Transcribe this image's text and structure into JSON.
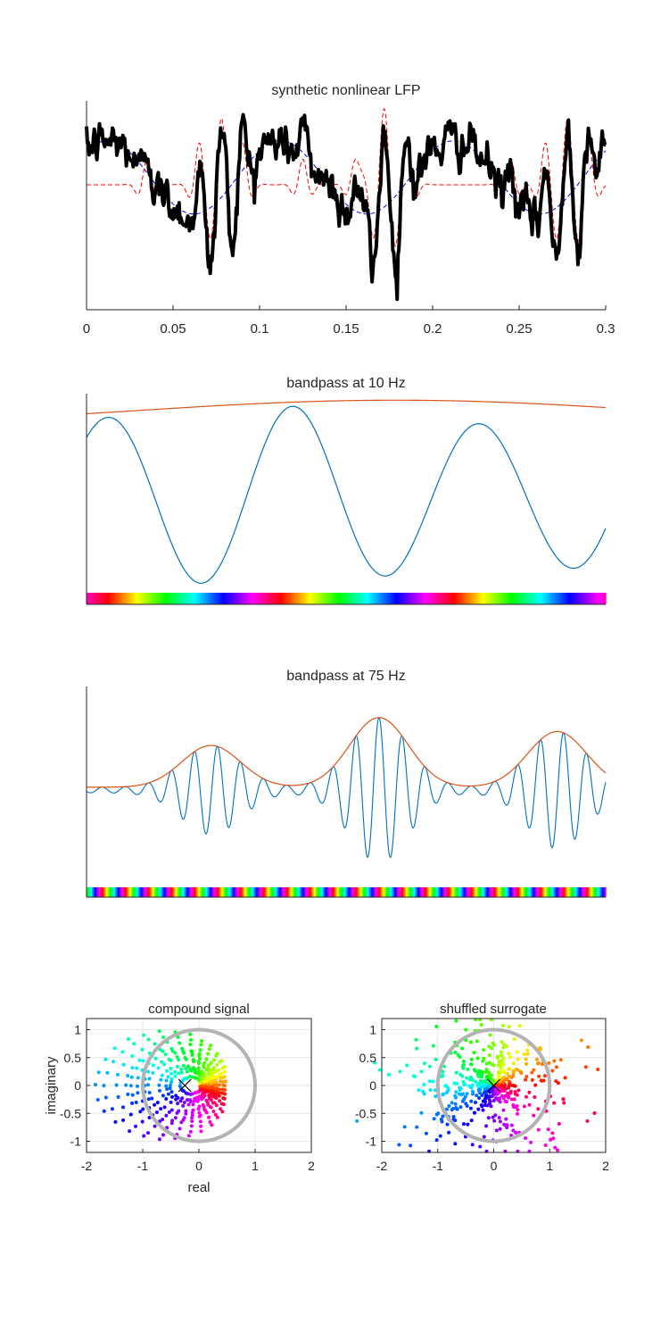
{
  "figure": {
    "panel_a": {
      "title": "synthetic nonlinear LFP"
    },
    "panel_b": {
      "title": "bandpass at 10 Hz"
    },
    "panel_c": {
      "title": "bandpass at 75 Hz"
    },
    "panel_d": {
      "title": "compound signal",
      "xlabel": "real",
      "ylabel": "imaginary"
    },
    "panel_e": {
      "title": "shuffled surrogate"
    }
  },
  "colors": {
    "lfp": "#000000",
    "lfp_low": "#0000ff",
    "lfp_high": "#ff0000",
    "bandpass": "#0072bd",
    "envelope": "#d95319",
    "unit_circle": "#b3b3b3",
    "mean_marker": "#000000",
    "axis": "#262626",
    "grid": "#e6e6e6"
  },
  "chart_data": [
    {
      "type": "line",
      "title": "synthetic nonlinear LFP",
      "xlim": [
        0,
        0.3
      ],
      "xticks": [
        0,
        0.05,
        0.1,
        0.15,
        0.2,
        0.25,
        0.3
      ],
      "xtick_labels": [
        "0",
        "0.05",
        "0.1",
        "0.15",
        "0.2",
        "0.25",
        "0.3"
      ],
      "yticks": [],
      "series": [
        {
          "style": "solid-thick",
          "description": "compound LFP (slow wave + sharp transients + noise)"
        },
        {
          "style": "dashed",
          "description": "slow 10 Hz-like component"
        },
        {
          "style": "dashed",
          "description": "sharp 75 Hz-locked transient component"
        }
      ],
      "events_x": [
        0.078,
        0.172,
        0.278
      ]
    },
    {
      "type": "line",
      "title": "bandpass at 10 Hz",
      "xlim": [
        0,
        0.3
      ],
      "xticks": [],
      "yticks": [],
      "frequency_hz": 10,
      "peaks_x": [
        0.012,
        0.12,
        0.228
      ],
      "troughs_x": [
        0.068,
        0.176,
        0.28
      ],
      "phase_colorbar": true
    },
    {
      "type": "line",
      "title": "bandpass at 75 Hz",
      "xlim": [
        0,
        0.3
      ],
      "xticks": [],
      "yticks": [],
      "frequency_hz": 75,
      "burst_centers_x": [
        0.072,
        0.169,
        0.272
      ],
      "burst_peak_amplitude": [
        0.6,
        1.0,
        0.8
      ],
      "phase_colorbar": true
    },
    {
      "type": "scatter",
      "title": "compound signal",
      "xlabel": "real",
      "ylabel": "imaginary",
      "xlim": [
        -2,
        2
      ],
      "ylim": [
        -1.2,
        1.2
      ],
      "xticks": [
        -2,
        -1,
        0,
        1,
        2
      ],
      "xtick_labels": [
        "-2",
        "-1",
        "0",
        "1",
        "2"
      ],
      "yticks": [
        1,
        0.5,
        0,
        -0.5,
        -1
      ],
      "ytick_labels": [
        "1",
        "0.5",
        "0",
        "-0.5",
        "-1"
      ],
      "grid": true,
      "unit_circle_center": [
        0,
        0
      ],
      "mean_vector": [
        -0.25,
        0.0
      ]
    },
    {
      "type": "scatter",
      "title": "shuffled surrogate",
      "xlim": [
        -2,
        2
      ],
      "ylim": [
        -1.2,
        1.2
      ],
      "xticks": [
        -2,
        -1,
        0,
        1,
        2
      ],
      "xtick_labels": [
        "-2",
        "-1",
        "0",
        "1",
        "2"
      ],
      "yticks": [
        1,
        0.5,
        0,
        -0.5,
        -1
      ],
      "ytick_labels": [
        "1",
        "0.5",
        "0",
        "-0.5",
        "-1"
      ],
      "grid": true,
      "unit_circle_center": [
        0,
        0
      ],
      "mean_vector": [
        0.0,
        0.0
      ]
    }
  ]
}
